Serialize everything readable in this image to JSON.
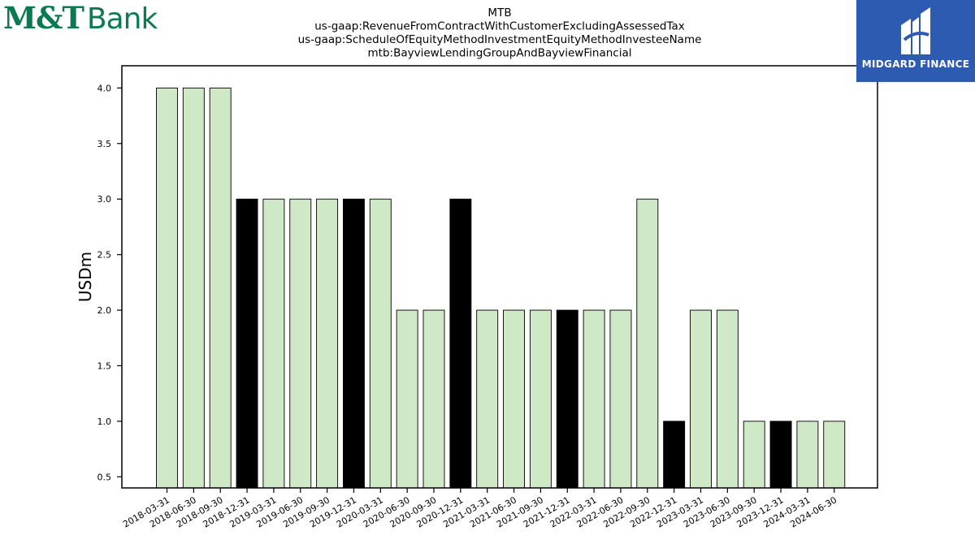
{
  "logos": {
    "left_mark": "M&T",
    "left_word": "Bank",
    "left_color": "#0a7a52",
    "right_text": "MIDGARD FINANCE",
    "right_bg": "#2e5bb2"
  },
  "chart_data": {
    "type": "bar",
    "title_lines": [
      "MTB",
      "us-gaap:RevenueFromContractWithCustomerExcludingAssessedTax",
      "us-gaap:ScheduleOfEquityMethodInvestmentEquityMethodInvesteeName",
      "mtb:BayviewLendingGroupAndBayviewFinancial"
    ],
    "xlabel": "",
    "ylabel": "USDm",
    "ylim": [
      0.4,
      4.2
    ],
    "yticks": [
      "0.5",
      "1.0",
      "1.5",
      "2.0",
      "2.5",
      "3.0",
      "3.5",
      "4.0"
    ],
    "categories": [
      "2018-03-31",
      "2018-06-30",
      "2018-09-30",
      "2018-12-31",
      "2019-03-31",
      "2019-06-30",
      "2019-09-30",
      "2019-12-31",
      "2020-03-31",
      "2020-06-30",
      "2020-09-30",
      "2020-12-31",
      "2021-03-31",
      "2021-06-30",
      "2021-09-30",
      "2021-12-31",
      "2022-03-31",
      "2022-06-30",
      "2022-09-30",
      "2022-12-31",
      "2023-03-31",
      "2023-06-30",
      "2023-09-30",
      "2023-12-31",
      "2024-03-31",
      "2024-06-30"
    ],
    "values": [
      4,
      4,
      4,
      3,
      3,
      3,
      3,
      3,
      3,
      2,
      2,
      3,
      2,
      2,
      2,
      2,
      2,
      2,
      3,
      1,
      2,
      2,
      1,
      1,
      1,
      1
    ],
    "highlight": [
      false,
      false,
      false,
      true,
      false,
      false,
      false,
      true,
      false,
      false,
      false,
      true,
      false,
      false,
      false,
      true,
      false,
      false,
      false,
      true,
      false,
      false,
      false,
      true,
      false,
      false
    ],
    "colors": {
      "bar": "#cfe8c6",
      "highlight": "#000000",
      "edge": "#000000"
    },
    "grid": false,
    "legend": "none"
  }
}
